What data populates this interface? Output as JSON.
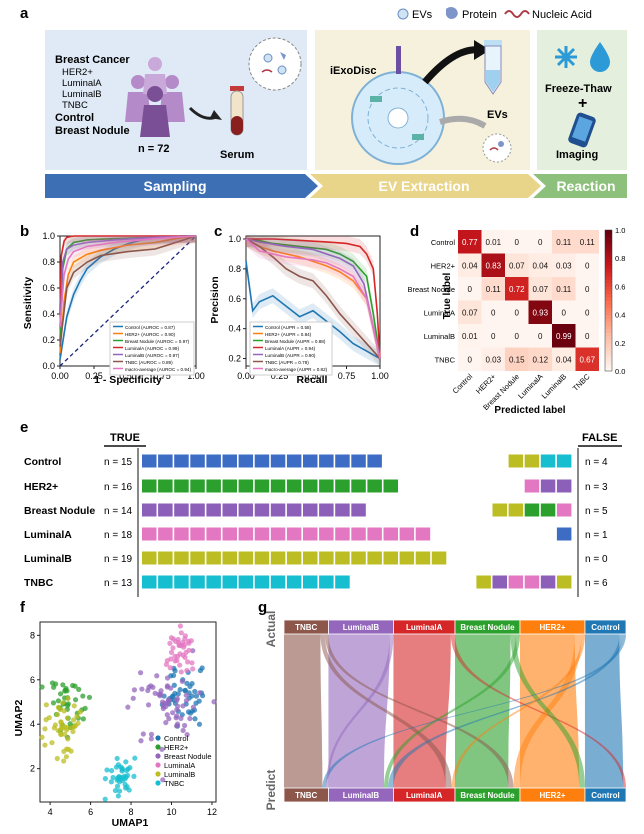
{
  "panel_a": {
    "letter": "a",
    "legend": [
      "EVs",
      "Protein",
      "Nucleic Acid"
    ],
    "sampling": {
      "title": "Breast Cancer",
      "subtypes": [
        "HER2+",
        "LuminalA",
        "LuminalB",
        "TNBC"
      ],
      "control": "Control",
      "nodule": "Breast Nodule",
      "n": "n = 72",
      "serum": "Serum"
    },
    "extraction": {
      "device": "iExoDisc",
      "evs": "EVs"
    },
    "reaction": {
      "freeze": "Freeze-Thaw",
      "plus": "+",
      "imaging": "Imaging"
    },
    "arrows": [
      "Sampling",
      "EV Extraction",
      "Reaction"
    ],
    "colors": {
      "sampling": "#3c6fb4",
      "extraction": "#e9d58a",
      "reaction": "#8cc07b"
    }
  },
  "panel_b": {
    "letter": "b",
    "chart_data": {
      "type": "line",
      "xlabel": "1 - Specificity",
      "ylabel": "Sensitivity",
      "xlim": [
        0,
        1
      ],
      "ylim": [
        0,
        1
      ],
      "xticks": [
        "0.00",
        "0.25",
        "0.50",
        "0.75",
        "1.00"
      ],
      "yticks": [
        "0.0",
        "0.2",
        "0.4",
        "0.6",
        "0.8",
        "1.0"
      ],
      "legend_position": "lower-right",
      "series": [
        {
          "name": "Control (AUROC = 0.87)",
          "color": "#1f77b4",
          "x": [
            0,
            0.05,
            0.1,
            0.15,
            0.2,
            0.3,
            0.4,
            0.5,
            0.6,
            0.75,
            0.9,
            1
          ],
          "y": [
            0.05,
            0.38,
            0.55,
            0.66,
            0.75,
            0.84,
            0.9,
            0.94,
            0.97,
            0.99,
            1,
            1
          ]
        },
        {
          "name": "HER2+ (AUROC = 0.90)",
          "color": "#ff7f0e",
          "x": [
            0,
            0.03,
            0.06,
            0.1,
            0.2,
            0.3,
            0.5,
            0.7,
            0.85,
            1
          ],
          "y": [
            0.1,
            0.5,
            0.7,
            0.8,
            0.86,
            0.89,
            0.93,
            0.95,
            0.98,
            1
          ]
        },
        {
          "name": "Breast Nodule (AUROC = 0.97)",
          "color": "#2ca02c",
          "x": [
            0,
            0.02,
            0.05,
            0.1,
            0.2,
            0.4,
            0.7,
            1
          ],
          "y": [
            0.2,
            0.75,
            0.9,
            0.95,
            0.97,
            0.98,
            0.99,
            1
          ]
        },
        {
          "name": "LuminalA (AUROC = 0.99)",
          "color": "#d62728",
          "x": [
            0,
            0.01,
            0.03,
            0.05,
            0.1,
            0.3,
            1
          ],
          "y": [
            0.4,
            0.85,
            0.96,
            0.99,
            1,
            1,
            1
          ]
        },
        {
          "name": "LuminalB (AUROC = 0.97)",
          "color": "#9467bd",
          "x": [
            0,
            0.02,
            0.05,
            0.1,
            0.2,
            0.4,
            0.7,
            1
          ],
          "y": [
            0.3,
            0.8,
            0.9,
            0.93,
            0.95,
            0.97,
            0.99,
            1
          ]
        },
        {
          "name": "TNBC (AUROC = 0.89)",
          "color": "#8c564b",
          "x": [
            0,
            0.05,
            0.1,
            0.2,
            0.3,
            0.5,
            0.7,
            0.85,
            1
          ],
          "y": [
            0.15,
            0.6,
            0.72,
            0.8,
            0.85,
            0.88,
            0.9,
            0.95,
            1
          ]
        },
        {
          "name": "macro-average (AUROC = 0.94)",
          "color": "#e377c2",
          "x": [
            0,
            0.03,
            0.06,
            0.1,
            0.2,
            0.4,
            0.7,
            1
          ],
          "y": [
            0.3,
            0.7,
            0.82,
            0.88,
            0.92,
            0.95,
            0.98,
            1
          ]
        }
      ],
      "diagonal": true
    }
  },
  "panel_c": {
    "letter": "c",
    "chart_data": {
      "type": "line",
      "xlabel": "Recall",
      "ylabel": "Precision",
      "xlim": [
        0,
        1
      ],
      "ylim": [
        0.15,
        1.02
      ],
      "xticks": [
        "0.00",
        "0.25",
        "0.50",
        "0.75",
        "1.00"
      ],
      "yticks": [
        "0.2",
        "0.4",
        "0.6",
        "0.8",
        "1.0"
      ],
      "legend_position": "lower-left",
      "series": [
        {
          "name": "Control (AUPR = 0.58)",
          "color": "#1f77b4",
          "x": [
            0,
            0.05,
            0.1,
            0.2,
            0.3,
            0.4,
            0.5,
            0.6,
            0.7,
            0.8,
            0.9,
            1
          ],
          "y": [
            0.85,
            0.52,
            0.58,
            0.62,
            0.55,
            0.48,
            0.52,
            0.45,
            0.38,
            0.3,
            0.25,
            0.2
          ]
        },
        {
          "name": "HER2+ (AUPR = 0.84)",
          "color": "#ff7f0e",
          "x": [
            0,
            0.1,
            0.2,
            0.3,
            0.4,
            0.5,
            0.6,
            0.7,
            0.8,
            0.9,
            0.95,
            1
          ],
          "y": [
            1,
            0.95,
            0.92,
            0.9,
            0.88,
            0.85,
            0.82,
            0.78,
            0.72,
            0.6,
            0.4,
            0.2
          ]
        },
        {
          "name": "Breast Nodule (AUPR = 0.88)",
          "color": "#2ca02c",
          "x": [
            0,
            0.1,
            0.2,
            0.4,
            0.6,
            0.7,
            0.8,
            0.9,
            0.95,
            1
          ],
          "y": [
            1,
            0.99,
            0.97,
            0.95,
            0.93,
            0.9,
            0.85,
            0.75,
            0.5,
            0.2
          ]
        },
        {
          "name": "LuminalA (AUPR = 0.94)",
          "color": "#d62728",
          "x": [
            0,
            0.2,
            0.4,
            0.6,
            0.75,
            0.85,
            0.9,
            0.95,
            0.98,
            1
          ],
          "y": [
            1,
            1,
            0.99,
            0.98,
            0.97,
            0.95,
            0.9,
            0.8,
            0.5,
            0.2
          ]
        },
        {
          "name": "LuminalB (AUPR = 0.90)",
          "color": "#9467bd",
          "x": [
            0,
            0.1,
            0.3,
            0.5,
            0.6,
            0.7,
            0.8,
            0.88,
            0.94,
            1
          ],
          "y": [
            1,
            0.98,
            0.95,
            0.93,
            0.9,
            0.87,
            0.82,
            0.7,
            0.45,
            0.2
          ]
        },
        {
          "name": "TNBC (AUPR = 0.78)",
          "color": "#8c564b",
          "x": [
            0,
            0.1,
            0.2,
            0.3,
            0.4,
            0.5,
            0.6,
            0.7,
            0.8,
            0.9,
            1
          ],
          "y": [
            1,
            0.95,
            0.88,
            0.8,
            0.75,
            0.72,
            0.62,
            0.5,
            0.4,
            0.3,
            0.2
          ]
        },
        {
          "name": "macro-average (AUPR = 0.82)",
          "color": "#e377c2",
          "x": [
            0,
            0.1,
            0.2,
            0.3,
            0.5,
            0.6,
            0.7,
            0.8,
            0.9,
            0.95,
            1
          ],
          "y": [
            1,
            0.92,
            0.9,
            0.88,
            0.86,
            0.84,
            0.8,
            0.75,
            0.6,
            0.4,
            0.2
          ]
        }
      ]
    }
  },
  "panel_d": {
    "letter": "d",
    "chart_data": {
      "type": "heatmap",
      "xlabel": "Predicted label",
      "ylabel": "True label",
      "labels": [
        "Control",
        "HER2+",
        "Breast Nodule",
        "LuminalA",
        "LuminalB",
        "TNBC"
      ],
      "matrix": [
        [
          0.77,
          0.01,
          0,
          0,
          0.11,
          0.11
        ],
        [
          0.04,
          0.83,
          0.07,
          0.04,
          0.03,
          0
        ],
        [
          0,
          0.11,
          0.72,
          0.07,
          0.11,
          0
        ],
        [
          0.07,
          0,
          0,
          0.93,
          0,
          0
        ],
        [
          0.01,
          0,
          0,
          0,
          0.99,
          0
        ],
        [
          0,
          0.03,
          0.15,
          0.12,
          0.04,
          0.67
        ]
      ],
      "display": [
        [
          "0.77",
          "0.01",
          "0",
          "0",
          "0.11",
          "0.11"
        ],
        [
          "0.04",
          "0.83",
          "0.07",
          "0.04",
          "0.03",
          "0"
        ],
        [
          "0",
          "0.11",
          "0.72",
          "0.07",
          "0.11",
          "0"
        ],
        [
          "0.07",
          "0",
          "0",
          "0.93",
          "0",
          "0"
        ],
        [
          "0.01",
          "0",
          "0",
          "0",
          "0.99",
          "0"
        ],
        [
          "0",
          "0.03",
          "0.15",
          "0.12",
          "0.04",
          "0.67"
        ]
      ],
      "colorbar_ticks": [
        "0.0",
        "0.2",
        "0.4",
        "0.6",
        "0.8",
        "1.0"
      ],
      "colormap": [
        "#fff5f0",
        "#fcbba1",
        "#fb6a4a",
        "#cb181d",
        "#67000d"
      ]
    }
  },
  "panel_e": {
    "letter": "e",
    "true_label": "TRUE",
    "false_label": "FALSE",
    "class_colors": {
      "Control": "#3d6cc4",
      "HER2+": "#2ca02c",
      "Breast Nodule": "#8c5fb8",
      "LuminalA": "#e377c2",
      "LuminalB": "#bcbd22",
      "TNBC": "#17becf"
    },
    "rows": [
      {
        "name": "Control",
        "n_true_label": "n = 15",
        "n_true": 15,
        "n_false_label": "n = 4",
        "false": [
          "LuminalB",
          "LuminalB",
          "TNBC",
          "TNBC"
        ]
      },
      {
        "name": "HER2+",
        "n_true_label": "n = 16",
        "n_true": 16,
        "n_false_label": "n = 3",
        "false": [
          "LuminalA",
          "Breast Nodule",
          "Breast Nodule"
        ]
      },
      {
        "name": "Breast Nodule",
        "n_true_label": "n = 14",
        "n_true": 14,
        "n_false_label": "n = 5",
        "false": [
          "LuminalB",
          "LuminalB",
          "HER2+",
          "HER2+",
          "LuminalA"
        ]
      },
      {
        "name": "LuminalA",
        "n_true_label": "n = 18",
        "n_true": 18,
        "n_false_label": "n = 1",
        "false": [
          "Control"
        ]
      },
      {
        "name": "LuminalB",
        "n_true_label": "n = 19",
        "n_true": 19,
        "n_false_label": "n = 0",
        "false": []
      },
      {
        "name": "TNBC",
        "n_true_label": "n = 13",
        "n_true": 13,
        "n_false_label": "n = 6",
        "false": [
          "LuminalB",
          "Breast Nodule",
          "LuminalA",
          "LuminalA",
          "Breast Nodule",
          "LuminalB"
        ]
      }
    ]
  },
  "panel_f": {
    "letter": "f",
    "chart_data": {
      "type": "scatter",
      "xlabel": "UMAP1",
      "ylabel": "UMAP2",
      "xlim": [
        3.5,
        12.2
      ],
      "ylim": [
        0.5,
        8.6
      ],
      "xticks": [
        "4",
        "6",
        "8",
        "10",
        "12"
      ],
      "yticks": [
        "2",
        "4",
        "6",
        "8"
      ],
      "legend_position": "lower-right",
      "clusters": [
        {
          "name": "Control",
          "color": "#1f77b4",
          "cx": 10.6,
          "cy": 5.2,
          "sx": 0.5,
          "sy": 0.6,
          "n": 45
        },
        {
          "name": "HER2+",
          "color": "#2ca02c",
          "cx": 5.0,
          "cy": 4.8,
          "sx": 0.5,
          "sy": 0.7,
          "n": 40
        },
        {
          "name": "Breast Nodule",
          "color": "#9467bd",
          "cx": 9.8,
          "cy": 5.0,
          "sx": 0.8,
          "sy": 0.8,
          "n": 60
        },
        {
          "name": "LuminalA",
          "color": "#e377c2",
          "cx": 10.4,
          "cy": 7.2,
          "sx": 0.4,
          "sy": 0.6,
          "n": 40
        },
        {
          "name": "LuminalB",
          "color": "#bcbd22",
          "cx": 4.6,
          "cy": 3.7,
          "sx": 0.5,
          "sy": 0.6,
          "n": 45
        },
        {
          "name": "TNBC",
          "color": "#17becf",
          "cx": 7.4,
          "cy": 1.6,
          "sx": 0.45,
          "sy": 0.5,
          "n": 40
        }
      ]
    }
  },
  "panel_g": {
    "letter": "g",
    "top_label": "Actual",
    "bottom_label": "Predict",
    "categories": [
      {
        "name": "TNBC",
        "color": "#8c564b",
        "frac": 0.13
      },
      {
        "name": "LuminalB",
        "color": "#9467bd",
        "frac": 0.19
      },
      {
        "name": "LuminalA",
        "color": "#d62728",
        "frac": 0.18
      },
      {
        "name": "Breast Nodule",
        "color": "#2ca02c",
        "frac": 0.19
      },
      {
        "name": "HER2+",
        "color": "#ff7f0e",
        "frac": 0.19
      },
      {
        "name": "Control",
        "color": "#1f77b4",
        "frac": 0.12
      }
    ]
  }
}
